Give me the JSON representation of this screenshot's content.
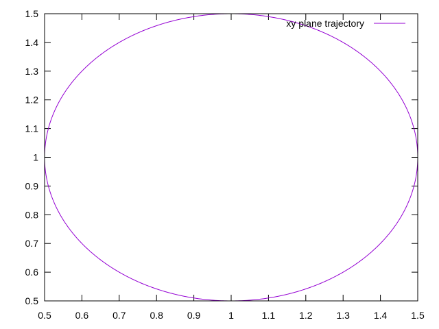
{
  "chart_data": {
    "type": "line",
    "title": "",
    "xlabel": "",
    "ylabel": "",
    "xlim": [
      0.5,
      1.5
    ],
    "ylim": [
      0.5,
      1.5
    ],
    "x_ticks": [
      0.5,
      0.6,
      0.7,
      0.8,
      0.9,
      1,
      1.1,
      1.2,
      1.3,
      1.4,
      1.5
    ],
    "y_ticks": [
      0.5,
      0.6,
      0.7,
      0.8,
      0.9,
      1,
      1.1,
      1.2,
      1.3,
      1.4,
      1.5
    ],
    "x_tick_labels": [
      "0.5",
      "0.6",
      "0.7",
      "0.8",
      "0.9",
      "1",
      "1.1",
      "1.2",
      "1.3",
      "1.4",
      "1.5"
    ],
    "y_tick_labels": [
      "0.5",
      "0.6",
      "0.7",
      "0.8",
      "0.9",
      "1",
      "1.1",
      "1.2",
      "1.3",
      "1.4",
      "1.5"
    ],
    "grid": false,
    "legend_position": "top-right",
    "series": [
      {
        "name": "xy plane trajectory",
        "color": "#9400d3",
        "shape": "circle",
        "center": [
          1.0,
          1.0
        ],
        "radius": 0.5
      }
    ]
  }
}
